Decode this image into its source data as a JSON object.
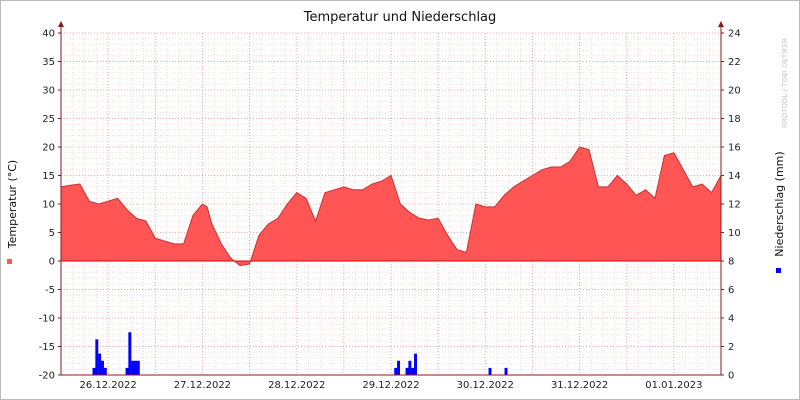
{
  "chart_data": {
    "type": "area",
    "title": "Temperatur und Niederschlag",
    "credit": "RRDTOOL / TOBI OETIKER",
    "ylabel_left": "Temperatur (°C)",
    "ylabel_right": "Niederschlag (mm)",
    "ylim_left": [
      -20,
      40
    ],
    "ylim_right": [
      0,
      24
    ],
    "left_ticks": [
      "40",
      "35",
      "30",
      "25",
      "20",
      "15",
      "10",
      "5",
      "0",
      "-5",
      "-10",
      "-15",
      "-20"
    ],
    "right_ticks": [
      "24",
      "22",
      "20",
      "18",
      "16",
      "14",
      "12",
      "10",
      "8",
      "6",
      "4",
      "2",
      "0"
    ],
    "x_range_days": [
      0,
      7
    ],
    "x_ticks": [
      {
        "x": 0.5,
        "label": "26.12.2022"
      },
      {
        "x": 1.5,
        "label": "27.12.2022"
      },
      {
        "x": 2.5,
        "label": "28.12.2022"
      },
      {
        "x": 3.5,
        "label": "29.12.2022"
      },
      {
        "x": 4.5,
        "label": "30.12.2022"
      },
      {
        "x": 5.5,
        "label": "31.12.2022"
      },
      {
        "x": 6.5,
        "label": "01.01.2023"
      }
    ],
    "colors": {
      "temperature": "#ff5555",
      "temperature_line": "#c83232",
      "precip": "#0000ff",
      "grid": "#f0a8a8",
      "axis": "#8a1a1a"
    },
    "series": [
      {
        "name": "Temperatur",
        "x": [
          0,
          0.1,
          0.2,
          0.3,
          0.4,
          0.5,
          0.6,
          0.7,
          0.8,
          0.9,
          1.0,
          1.1,
          1.2,
          1.3,
          1.4,
          1.5,
          1.55,
          1.6,
          1.7,
          1.8,
          1.9,
          2.0,
          2.1,
          2.2,
          2.3,
          2.4,
          2.5,
          2.6,
          2.7,
          2.8,
          2.9,
          3.0,
          3.1,
          3.2,
          3.3,
          3.4,
          3.5,
          3.6,
          3.7,
          3.8,
          3.9,
          4.0,
          4.1,
          4.2,
          4.3,
          4.4,
          4.5,
          4.6,
          4.7,
          4.8,
          4.9,
          5.0,
          5.1,
          5.2,
          5.3,
          5.4,
          5.5,
          5.6,
          5.7,
          5.8,
          5.9,
          6.0,
          6.1,
          6.2,
          6.3,
          6.4,
          6.5,
          6.6,
          6.7,
          6.8,
          6.9,
          7.0
        ],
        "values": [
          13,
          13.3,
          13.5,
          10.5,
          10,
          10.5,
          11,
          9,
          7.5,
          7,
          4,
          3.5,
          3,
          3,
          8,
          10,
          9.5,
          6.5,
          3,
          0.5,
          -0.8,
          -0.5,
          4.5,
          6.5,
          7.5,
          10,
          12,
          11,
          7,
          12,
          12.5,
          13,
          12.5,
          12.5,
          13.5,
          14,
          15,
          10,
          8.5,
          7.5,
          7.2,
          7.5,
          4.5,
          2,
          1.5,
          10,
          9.5,
          9.5,
          11.5,
          13,
          14,
          15,
          16,
          16.5,
          16.5,
          17.5,
          20,
          19.5,
          13,
          13,
          15,
          13.5,
          11.5,
          12.5,
          11,
          18.5,
          19,
          16,
          13,
          13.5,
          12,
          15
        ]
      },
      {
        "name": "Niederschlag",
        "x": [
          0.35,
          0.38,
          0.41,
          0.44,
          0.47,
          0.7,
          0.73,
          0.76,
          0.79,
          0.82,
          3.55,
          3.58,
          3.67,
          3.7,
          3.73,
          3.76,
          4.55,
          4.72
        ],
        "values": [
          0.5,
          2.5,
          1.5,
          1.0,
          0.5,
          0.5,
          3.0,
          1.0,
          1.0,
          1.0,
          0.5,
          1.0,
          0.5,
          1.0,
          0.5,
          1.5,
          0.5,
          0.5
        ]
      }
    ]
  }
}
